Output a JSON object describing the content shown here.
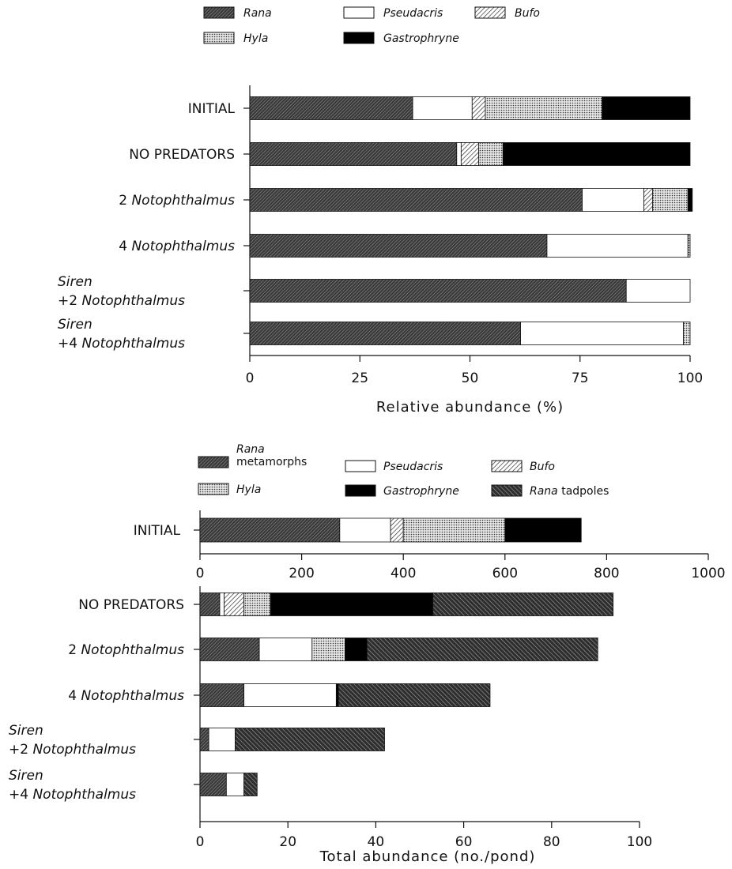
{
  "chart_data": [
    {
      "type": "bar",
      "orientation": "horizontal",
      "stacked": true,
      "xlabel": "Relative abundance (%)",
      "xlim": [
        0,
        100
      ],
      "xticks": [
        0,
        25,
        50,
        75,
        100
      ],
      "grid": false,
      "legend_placement": "top",
      "categories": [
        {
          "parts": [
            {
              "text": "INITIAL",
              "italic": false
            }
          ]
        },
        {
          "parts": [
            {
              "text": "NO PREDATORS",
              "italic": false
            }
          ]
        },
        {
          "parts": [
            {
              "text": "2 ",
              "italic": false
            },
            {
              "text": "Notophthalmus",
              "italic": true
            }
          ]
        },
        {
          "parts": [
            {
              "text": "4 ",
              "italic": false
            },
            {
              "text": "Notophthalmus",
              "italic": true
            }
          ]
        },
        {
          "lines": [
            [
              {
                "text": "Siren",
                "italic": true
              }
            ],
            [
              {
                "text": "+2 ",
                "italic": false
              },
              {
                "text": "Notophthalmus",
                "italic": true
              }
            ]
          ]
        },
        {
          "lines": [
            [
              {
                "text": "Siren",
                "italic": true
              }
            ],
            [
              {
                "text": "+4 ",
                "italic": false
              },
              {
                "text": "Notophthalmus",
                "italic": true
              }
            ]
          ]
        }
      ],
      "series": [
        {
          "name": "Rana",
          "pattern": "dense-diag",
          "values": [
            37,
            47,
            75.5,
            67.5,
            85.5,
            61.5
          ]
        },
        {
          "name": "Pseudacris",
          "pattern": "white",
          "values": [
            13.5,
            1,
            14,
            32,
            14.5,
            37
          ]
        },
        {
          "name": "Bufo",
          "pattern": "light-diag",
          "values": [
            3,
            4,
            2,
            0,
            0,
            0
          ]
        },
        {
          "name": "Hyla",
          "pattern": "dots",
          "values": [
            26.5,
            5.5,
            8,
            0.5,
            0,
            1.5
          ]
        },
        {
          "name": "Gastrophryne",
          "pattern": "black",
          "values": [
            20,
            42.5,
            1,
            0,
            0,
            0
          ]
        }
      ],
      "legend": [
        {
          "label": "Rana",
          "pattern": "dense-diag",
          "italic": true
        },
        {
          "label": "Pseudacris",
          "pattern": "white",
          "italic": true
        },
        {
          "label": "Bufo",
          "pattern": "light-diag",
          "italic": true
        },
        {
          "label": "Hyla",
          "pattern": "dots",
          "italic": true
        },
        {
          "label": "Gastrophryne",
          "pattern": "black",
          "italic": true
        }
      ]
    },
    {
      "type": "bar",
      "orientation": "horizontal",
      "stacked": true,
      "xlabel": "Total abundance (no./pond)",
      "grid": false,
      "legend_placement": "top",
      "panels": [
        {
          "xlim": [
            0,
            1000
          ],
          "xticks": [
            0,
            200,
            400,
            600,
            800,
            1000
          ],
          "categories": [
            {
              "parts": [
                {
                  "text": "INITIAL",
                  "italic": false
                }
              ]
            }
          ],
          "series": [
            {
              "name": "Rana metamorphs",
              "pattern": "dense-diag",
              "values": [
                275
              ]
            },
            {
              "name": "Pseudacris",
              "pattern": "white",
              "values": [
                100
              ]
            },
            {
              "name": "Bufo",
              "pattern": "light-diag",
              "values": [
                25
              ]
            },
            {
              "name": "Hyla",
              "pattern": "dots",
              "values": [
                200
              ]
            },
            {
              "name": "Gastrophryne",
              "pattern": "black",
              "values": [
                150
              ]
            }
          ]
        },
        {
          "xlim": [
            0,
            100
          ],
          "xticks": [
            0,
            20,
            40,
            60,
            80,
            100
          ],
          "categories": [
            {
              "parts": [
                {
                  "text": "NO PREDATORS",
                  "italic": false
                }
              ]
            },
            {
              "parts": [
                {
                  "text": "2 ",
                  "italic": false
                },
                {
                  "text": "Notophthalmus",
                  "italic": true
                }
              ]
            },
            {
              "parts": [
                {
                  "text": "4 ",
                  "italic": false
                },
                {
                  "text": "Notophthalmus",
                  "italic": true
                }
              ]
            },
            {
              "lines": [
                [
                  {
                    "text": "Siren",
                    "italic": true
                  }
                ],
                [
                  {
                    "text": "+2 ",
                    "italic": false
                  },
                  {
                    "text": "Notophthalmus",
                    "italic": true
                  }
                ]
              ]
            },
            {
              "lines": [
                [
                  {
                    "text": "Siren",
                    "italic": true
                  }
                ],
                [
                  {
                    "text": "+4 ",
                    "italic": false
                  },
                  {
                    "text": "Notophthalmus",
                    "italic": true
                  }
                ]
              ]
            }
          ],
          "series": [
            {
              "name": "Rana metamorphs",
              "pattern": "dense-diag",
              "values": [
                4.5,
                13.5,
                10,
                2,
                6
              ]
            },
            {
              "name": "Pseudacris",
              "pattern": "white",
              "values": [
                1,
                12,
                21,
                6,
                4
              ]
            },
            {
              "name": "Bufo",
              "pattern": "light-diag",
              "values": [
                4.5,
                0,
                0,
                0,
                0
              ]
            },
            {
              "name": "Hyla",
              "pattern": "dots",
              "values": [
                6,
                7.5,
                0,
                0,
                0
              ]
            },
            {
              "name": "Gastrophryne",
              "pattern": "black",
              "values": [
                37,
                5,
                0.5,
                0,
                0
              ]
            },
            {
              "name": "Rana tadpoles",
              "pattern": "coarse-diag",
              "values": [
                41,
                52.5,
                34.5,
                34,
                3
              ]
            }
          ]
        }
      ],
      "legend": [
        {
          "label_lines": [
            "Rana",
            "metamorphs"
          ],
          "italic_first": true,
          "pattern": "dense-diag"
        },
        {
          "label": "Pseudacris",
          "pattern": "white",
          "italic": true
        },
        {
          "label": "Bufo",
          "pattern": "light-diag",
          "italic": true
        },
        {
          "label": "Hyla",
          "pattern": "dots",
          "italic": true
        },
        {
          "label": "Gastrophryne",
          "pattern": "black",
          "italic": true
        },
        {
          "label_parts": [
            {
              "text": "Rana",
              "italic": true
            },
            {
              "text": " tadpoles",
              "italic": false
            }
          ],
          "pattern": "coarse-diag"
        }
      ]
    }
  ]
}
